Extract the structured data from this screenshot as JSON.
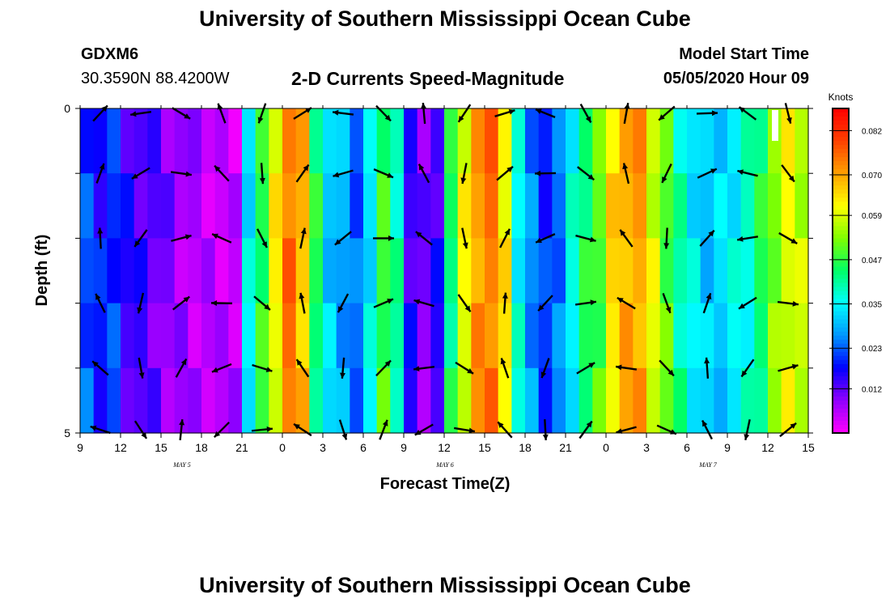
{
  "header": {
    "title_top": "University of Southern Mississippi Ocean Cube",
    "station_id": "GDXM6",
    "station_coords": "30.3590N 88.4200W",
    "plot_subtitle": "2-D Currents Speed-Magnitude",
    "model_start_label": "Model Start Time",
    "model_start_value": "05/05/2020 Hour 09",
    "title_bottom": "University of Southern Mississippi Ocean Cube"
  },
  "chart_data": {
    "type": "heatmap",
    "title": "2-D Currents Speed-Magnitude",
    "xlabel": "Forecast Time(Z)",
    "ylabel": "Depth (ft)",
    "x_tick_labels": [
      "9",
      "12",
      "15",
      "18",
      "21",
      "0",
      "3",
      "6",
      "9",
      "12",
      "15",
      "18",
      "21",
      "0",
      "3",
      "6",
      "9",
      "12",
      "15"
    ],
    "date_labels": [
      "MAY 5",
      "MAY 6",
      "MAY 7"
    ],
    "y_tick_labels": [
      "0",
      "5"
    ],
    "ylim": [
      0,
      5
    ],
    "colorbar": {
      "unit": "Knots",
      "ticks": [
        "0.082",
        "0.070",
        "0.059",
        "0.047",
        "0.035",
        "0.023",
        "0.012"
      ],
      "tick_values": [
        0.082,
        0.07,
        0.059,
        0.047,
        0.035,
        0.023,
        0.012
      ],
      "range": [
        0.0,
        0.088
      ],
      "colors": [
        "#ff00ff",
        "#9000ff",
        "#0000ff",
        "#0096ff",
        "#00ffff",
        "#00ff66",
        "#80ff00",
        "#ffff00",
        "#ffa000",
        "#ff4000",
        "#ff0000"
      ]
    },
    "columns_per_hour": 1,
    "hours": 54,
    "layers": 5,
    "speed_profile": [
      0.022,
      0.018,
      0.02,
      0.015,
      0.013,
      0.012,
      0.009,
      0.008,
      0.006,
      0.006,
      0.005,
      0.005,
      0.034,
      0.046,
      0.062,
      0.074,
      0.068,
      0.044,
      0.032,
      0.028,
      0.024,
      0.034,
      0.048,
      0.04,
      0.014,
      0.01,
      0.014,
      0.044,
      0.06,
      0.072,
      0.074,
      0.064,
      0.036,
      0.026,
      0.02,
      0.024,
      0.036,
      0.044,
      0.05,
      0.064,
      0.07,
      0.07,
      0.06,
      0.05,
      0.04,
      0.034,
      0.03,
      0.032,
      0.034,
      0.038,
      0.044,
      0.054,
      0.06,
      0.058
    ],
    "arrows_sample": [
      {
        "hour": 3,
        "layer": 0,
        "dir": 45
      },
      {
        "hour": 12,
        "layer": 0,
        "dir": 120
      },
      {
        "hour": 24,
        "layer": 0,
        "dir": 80
      },
      {
        "hour": 36,
        "layer": 0,
        "dir": 60
      },
      {
        "hour": 51,
        "layer": 0,
        "dir": 90
      }
    ]
  }
}
